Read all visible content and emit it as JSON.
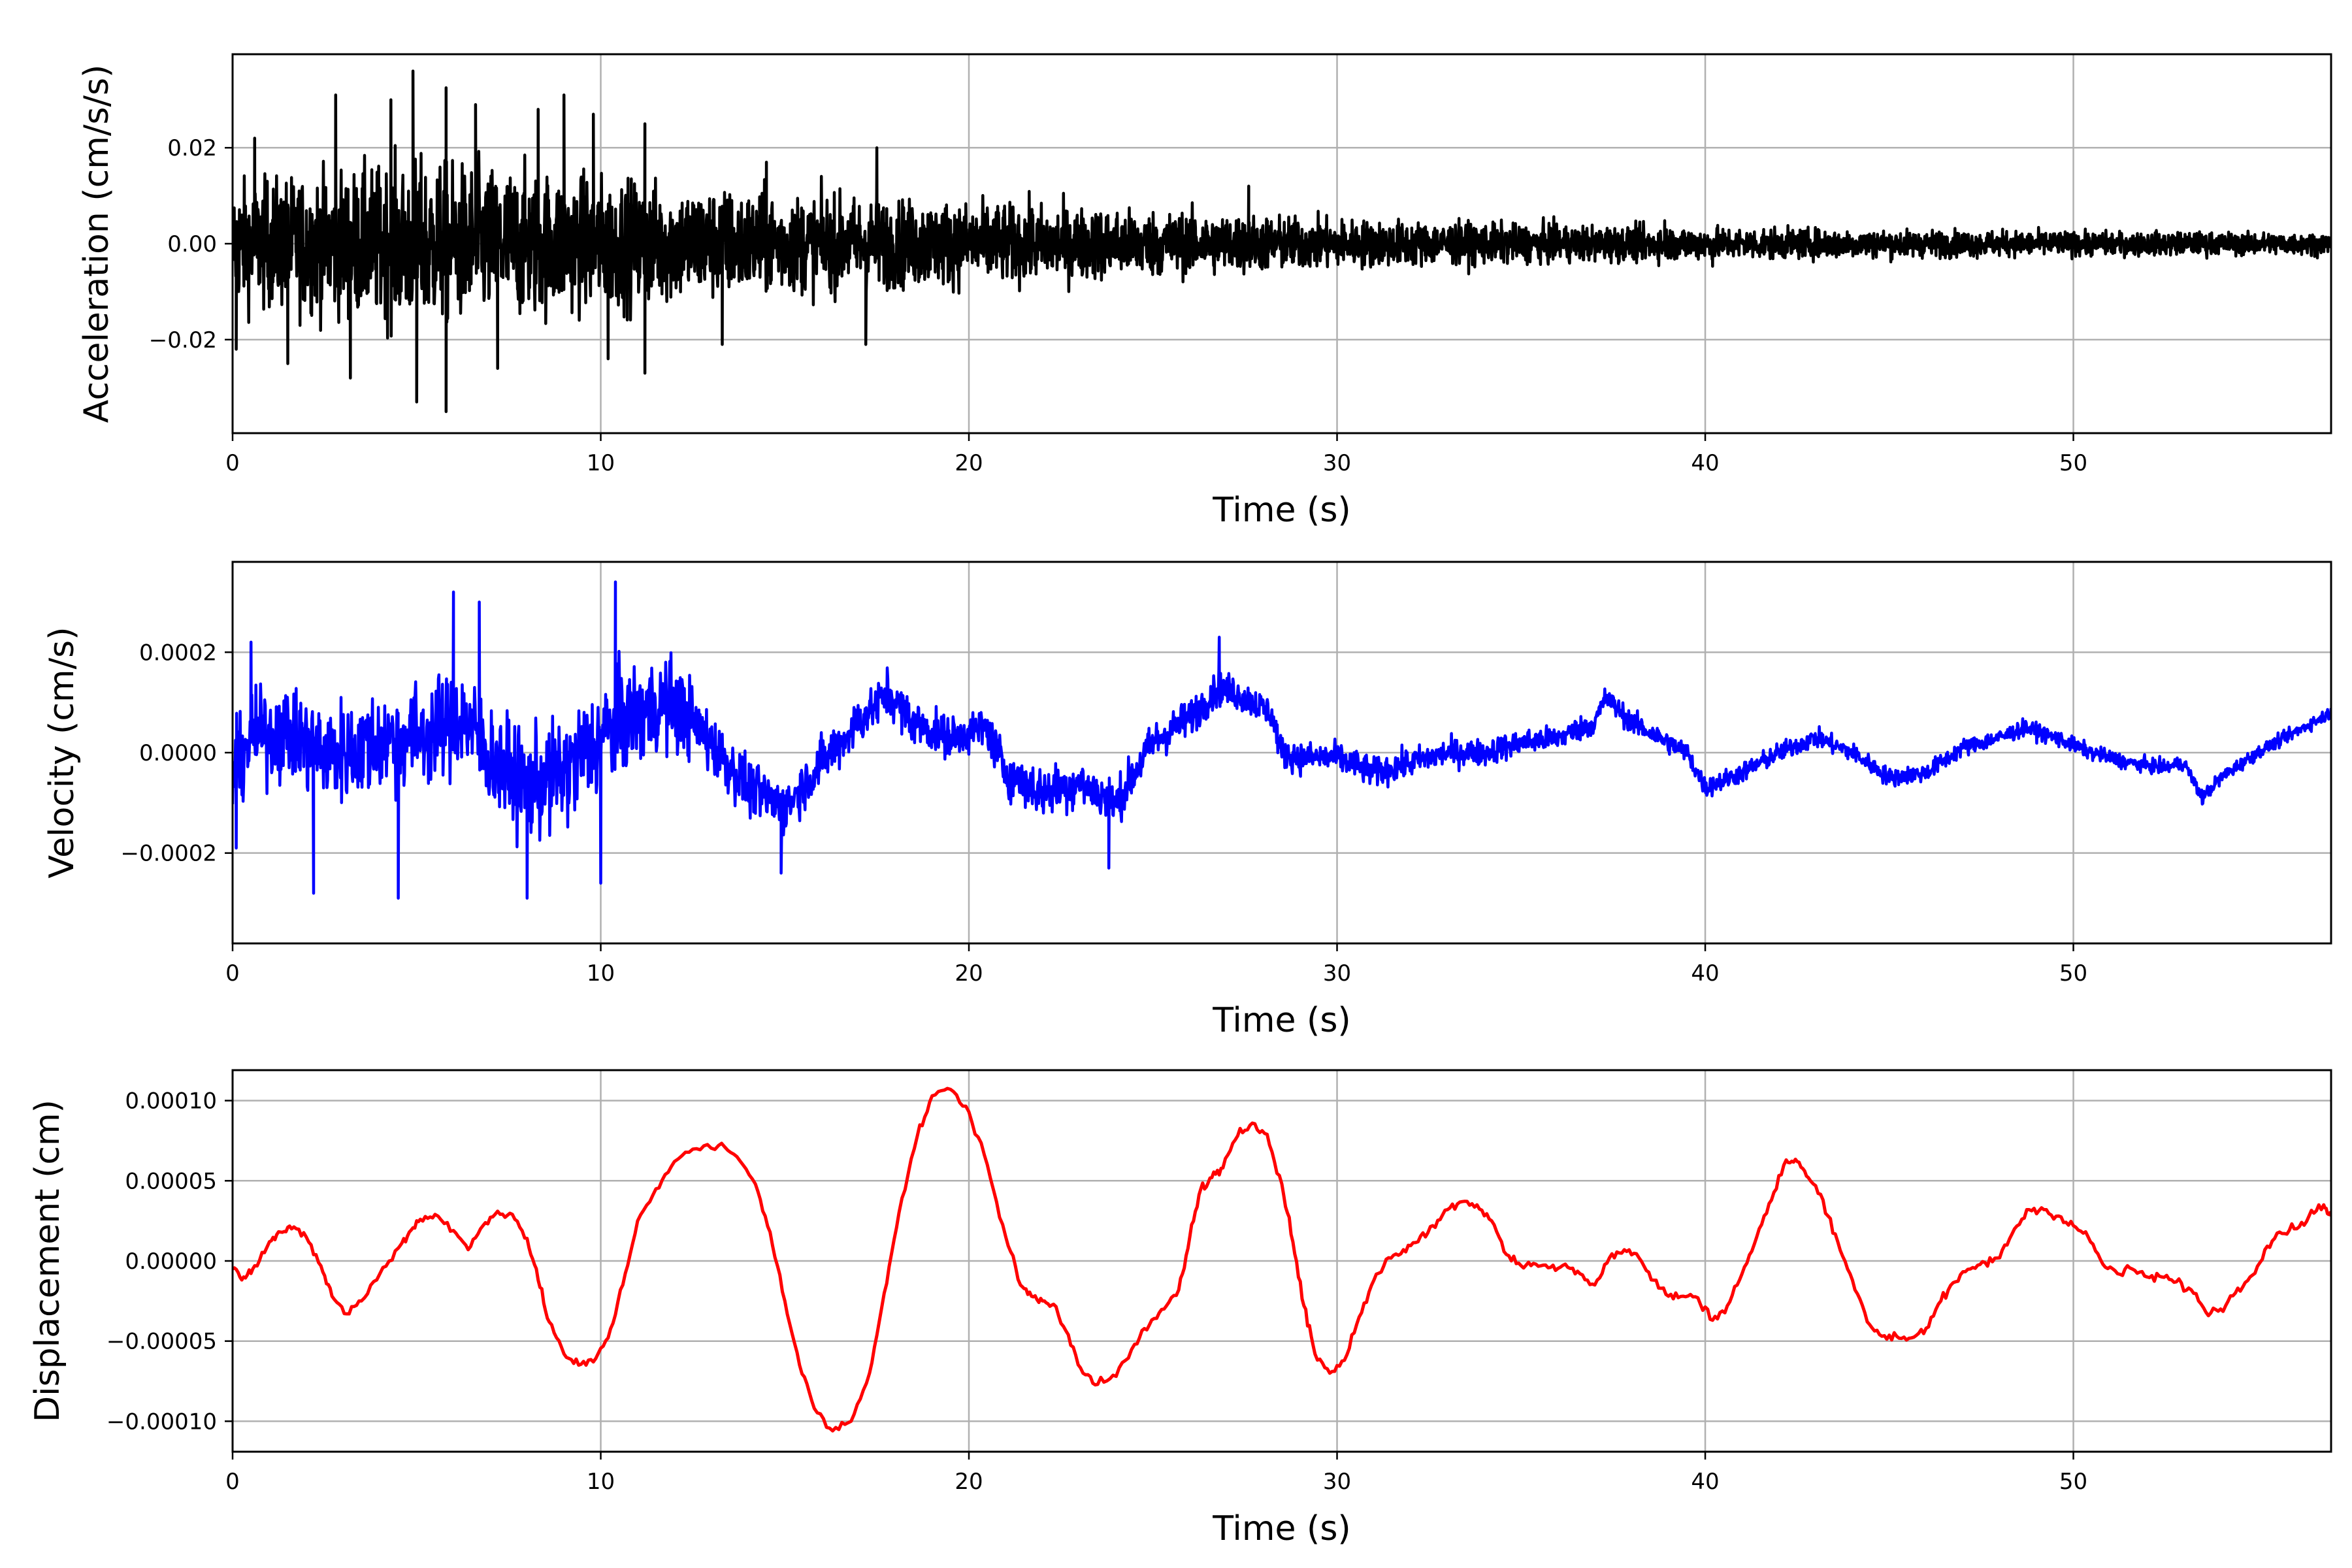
{
  "figure": {
    "background": "#ffffff",
    "grid_color": "#b0b0b0"
  },
  "chart_data": [
    {
      "type": "line",
      "title": "",
      "xlabel": "Time (s)",
      "ylabel": "Acceleration (cm/s/s)",
      "xlim": [
        0,
        57
      ],
      "ylim": [
        -0.0395,
        0.0395
      ],
      "xticks": [
        0,
        10,
        20,
        30,
        40,
        50
      ],
      "xtick_labels": [
        "0",
        "10",
        "20",
        "30",
        "40",
        "50"
      ],
      "yticks": [
        -0.02,
        0.0,
        0.02
      ],
      "ytick_labels": [
        "−0.02",
        "0.00",
        "0.02"
      ],
      "grid": true,
      "series": [
        {
          "color": "#000000",
          "style": "noise",
          "envelope": {
            "x": [
              0,
              3,
              5,
              7,
              10,
              15,
              20,
              25,
              30,
              35,
              40,
              45,
              50,
              57
            ],
            "y": [
              0.011,
              0.013,
              0.015,
              0.014,
              0.012,
              0.009,
              0.0075,
              0.006,
              0.0045,
              0.0035,
              0.003,
              0.0025,
              0.0022,
              0.002
            ]
          },
          "peaks": [
            {
              "x": 4.9,
              "y": 0.036
            },
            {
              "x": 5.8,
              "y": 0.0325
            },
            {
              "x": 5.8,
              "y": -0.035
            },
            {
              "x": 5.0,
              "y": -0.033
            },
            {
              "x": 1.5,
              "y": -0.025
            },
            {
              "x": 2.8,
              "y": 0.031
            },
            {
              "x": 3.2,
              "y": -0.028
            },
            {
              "x": 4.3,
              "y": 0.03
            },
            {
              "x": 6.6,
              "y": 0.029
            },
            {
              "x": 7.2,
              "y": -0.026
            },
            {
              "x": 8.3,
              "y": 0.028
            },
            {
              "x": 9.0,
              "y": 0.031
            },
            {
              "x": 9.8,
              "y": 0.027
            },
            {
              "x": 10.2,
              "y": -0.024
            },
            {
              "x": 11.2,
              "y": 0.025
            },
            {
              "x": 13.3,
              "y": -0.021
            },
            {
              "x": 17.5,
              "y": 0.02
            },
            {
              "x": 17.2,
              "y": -0.021
            },
            {
              "x": 14.5,
              "y": 0.017
            },
            {
              "x": 27.6,
              "y": 0.012
            },
            {
              "x": 38.9,
              "y": 0.0048
            },
            {
              "x": 40.2,
              "y": -0.0047
            },
            {
              "x": 0.6,
              "y": 0.022
            },
            {
              "x": 0.1,
              "y": -0.022
            },
            {
              "x": 11.2,
              "y": -0.027
            }
          ]
        }
      ]
    },
    {
      "type": "line",
      "title": "",
      "xlabel": "Time (s)",
      "ylabel": "Velocity (cm/s)",
      "xlim": [
        0,
        57
      ],
      "ylim": [
        -0.00038,
        0.00038
      ],
      "xticks": [
        0,
        10,
        20,
        30,
        40,
        50
      ],
      "xtick_labels": [
        "0",
        "10",
        "20",
        "30",
        "40",
        "50"
      ],
      "yticks": [
        -0.0002,
        0.0,
        0.0002
      ],
      "ytick_labels": [
        "−0.0002",
        "0.0000",
        "0.0002"
      ],
      "grid": true,
      "series": [
        {
          "color": "#0000ff",
          "style": "noisy-trend",
          "trend": {
            "x": [
              0,
              0.5,
              1.5,
              2.5,
              3.5,
              4.5,
              5.5,
              6.3,
              7,
              8,
              9,
              10,
              10.5,
              11,
              12,
              13,
              14,
              15,
              16,
              17,
              17.8,
              18.5,
              19.5,
              20.5,
              21,
              22,
              23,
              24,
              25,
              26,
              26.8,
              27.5,
              28.2,
              28.5,
              29,
              30,
              31,
              32,
              33,
              34,
              35,
              36,
              37,
              37.3,
              38,
              39,
              39.5,
              40,
              41,
              42,
              43,
              44,
              45,
              46,
              47,
              48,
              48.7,
              49.5,
              50.5,
              51.5,
              52.5,
              53,
              53.5,
              54,
              55,
              56,
              57
            ],
            "y": [
              -5e-05,
              3e-05,
              4e-05,
              0.0,
              1e-05,
              3e-05,
              4e-05,
              7e-05,
              -1e-05,
              -7e-05,
              -4e-05,
              3e-05,
              6e-05,
              8e-05,
              0.0001,
              2e-05,
              -7e-05,
              -0.00011,
              -2e-05,
              6e-05,
              0.00012,
              6e-05,
              3e-05,
              5e-05,
              -4e-05,
              -8e-05,
              -6e-05,
              -0.0001,
              2e-05,
              7e-05,
              0.00013,
              0.00011,
              8e-05,
              0.0,
              -1e-05,
              -1e-05,
              -4e-05,
              -2e-05,
              0.0,
              0.0,
              2e-05,
              3e-05,
              6e-05,
              0.00011,
              6e-05,
              2e-05,
              0.0,
              -7e-05,
              -4e-05,
              0.0,
              3e-05,
              0.0,
              -5e-05,
              -4e-05,
              1e-05,
              3e-05,
              5e-05,
              3e-05,
              0.0,
              -2e-05,
              -3e-05,
              -2e-05,
              -9e-05,
              -5e-05,
              0.0,
              4e-05,
              8e-05
            ]
          },
          "noise": {
            "x": [
              0,
              3,
              7,
              10,
              12,
              13,
              15,
              20,
              22,
              25,
              28,
              30,
              35,
              40,
              45,
              50,
              57
            ],
            "y": [
              8e-05,
              0.0001,
              0.0001,
              0.00011,
              9e-05,
              6e-05,
              5e-05,
              4e-05,
              5e-05,
              4e-05,
              3e-05,
              3e-05,
              2.5e-05,
              2e-05,
              1.8e-05,
              1.5e-05,
              1.2e-05
            ]
          },
          "peaks": [
            {
              "x": 10.4,
              "y": 0.00034
            },
            {
              "x": 6.0,
              "y": 0.00032
            },
            {
              "x": 6.7,
              "y": 0.0003
            },
            {
              "x": 8.0,
              "y": -0.00029
            },
            {
              "x": 4.5,
              "y": -0.00029
            },
            {
              "x": 2.2,
              "y": -0.00028
            },
            {
              "x": 10.0,
              "y": -0.00026
            },
            {
              "x": 26.8,
              "y": 0.00023
            },
            {
              "x": 23.8,
              "y": -0.00023
            },
            {
              "x": 14.9,
              "y": -0.00024
            },
            {
              "x": 0.5,
              "y": 0.00022
            },
            {
              "x": 0.1,
              "y": -0.00019
            }
          ]
        }
      ]
    },
    {
      "type": "line",
      "title": "",
      "xlabel": "Time (s)",
      "ylabel": "Displacement (cm)",
      "xlim": [
        0,
        57
      ],
      "ylim": [
        -0.000119,
        0.000119
      ],
      "xticks": [
        0,
        10,
        20,
        30,
        40,
        50
      ],
      "xtick_labels": [
        "0",
        "10",
        "20",
        "30",
        "40",
        "50"
      ],
      "yticks": [
        -0.0001,
        -5e-05,
        0.0,
        5e-05,
        0.0001
      ],
      "ytick_labels": [
        "−0.00010",
        "−0.00005",
        "0.00000",
        "0.00005",
        "0.00010"
      ],
      "grid": true,
      "series": [
        {
          "color": "#ff0000",
          "style": "smooth",
          "x": [
            0,
            0.3,
            0.6,
            1.0,
            1.3,
            1.6,
            2.0,
            2.4,
            2.7,
            3.1,
            3.5,
            4.0,
            4.5,
            4.8,
            5.1,
            5.5,
            6.0,
            6.4,
            6.8,
            7.2,
            7.6,
            8.0,
            8.3,
            8.6,
            9.0,
            9.4,
            9.8,
            10.2,
            10.6,
            11.0,
            11.5,
            12.0,
            12.6,
            13.2,
            13.7,
            14.2,
            14.6,
            15.0,
            15.4,
            15.8,
            16.3,
            16.8,
            17.3,
            17.7,
            18.1,
            18.6,
            19.0,
            19.5,
            20.0,
            20.5,
            21.0,
            21.4,
            21.7,
            22.0,
            22.3,
            22.7,
            23.1,
            23.5,
            24.0,
            24.5,
            24.9,
            25.3,
            25.7,
            26.0,
            26.3,
            26.6,
            26.9,
            27.3,
            27.7,
            28.1,
            28.5,
            28.8,
            29.1,
            29.4,
            29.8,
            30.2,
            30.6,
            31.0,
            31.4,
            31.8,
            32.2,
            32.6,
            33.0,
            33.4,
            33.8,
            34.2,
            34.6,
            35.0,
            35.4,
            35.8,
            36.2,
            36.6,
            37.0,
            37.4,
            37.8,
            38.2,
            38.6,
            39.0,
            39.4,
            39.8,
            40.2,
            40.6,
            41.0,
            41.4,
            41.8,
            42.2,
            42.5,
            42.8,
            43.2,
            43.6,
            44.0,
            44.4,
            44.8,
            45.2,
            45.6,
            46.0,
            46.4,
            46.8,
            47.2,
            47.6,
            48.0,
            48.4,
            48.8,
            49.2,
            49.6,
            50.0,
            50.4,
            50.8,
            51.2,
            51.6,
            52.0,
            52.4,
            52.8,
            53.2,
            53.6,
            54.0,
            54.4,
            54.8,
            55.2,
            55.6,
            56.0,
            56.4,
            56.8,
            57.0
          ],
          "y": [
            -5e-06,
            -1e-05,
            -3e-06,
            1.2e-05,
            1.8e-05,
            2e-05,
            1.5e-05,
            -3e-06,
            -2.2e-05,
            -3.3e-05,
            -2.5e-05,
            -8e-06,
            8e-06,
            1.8e-05,
            2.6e-05,
            2.9e-05,
            1.9e-05,
            7e-06,
            2.2e-05,
            3.1e-05,
            2.9e-05,
            1.4e-05,
            -1.2e-05,
            -3.8e-05,
            -5.8e-05,
            -6.5e-05,
            -6.3e-05,
            -4.8e-05,
            -1.5e-05,
            2.5e-05,
            4.5e-05,
            6.2e-05,
            7e-05,
            7.2e-05,
            6.5e-05,
            4.8e-05,
            1.8e-05,
            -2.5e-05,
            -6.5e-05,
            -9.2e-05,
            -0.000106,
            -0.0001,
            -7e-05,
            -2e-05,
            3e-05,
            7.8e-05,
            0.000103,
            0.000107,
            9.3e-05,
            6e-05,
            1.5e-05,
            -1.5e-05,
            -2.2e-05,
            -2.5e-05,
            -2.7e-05,
            -4.6e-05,
            -7e-05,
            -7.7e-05,
            -7.2e-05,
            -5.2e-05,
            -4e-05,
            -3e-05,
            -1.8e-05,
            1.5e-05,
            4.5e-05,
            5.2e-05,
            5.8e-05,
            7.8e-05,
            8.6e-05,
            7.9e-05,
            4.8e-05,
            1.2e-05,
            -2.8e-05,
            -5.8e-05,
            -7e-05,
            -6.2e-05,
            -3.5e-05,
            -1.2e-05,
            2e-06,
            7e-06,
            1.2e-05,
            2.2e-05,
            3.2e-05,
            3.7e-05,
            3.5e-05,
            2.5e-05,
            4e-06,
            -3e-06,
            -2e-06,
            -4e-06,
            -2e-06,
            -8e-06,
            -1.5e-05,
            2e-06,
            7e-06,
            2e-06,
            -1.2e-05,
            -2.2e-05,
            -2.2e-05,
            -2.3e-05,
            -3.7e-05,
            -2.8e-05,
            -8e-06,
            1.5e-05,
            3.8e-05,
            6.3e-05,
            6.2e-05,
            5.2e-05,
            3.8e-05,
            1.2e-05,
            -1.2e-05,
            -3.8e-05,
            -4.7e-05,
            -4.7e-05,
            -4.8e-05,
            -4.2e-05,
            -2.5e-05,
            -1.3e-05,
            -5e-06,
            -1e-06,
            2e-06,
            2e-05,
            3.2e-05,
            3.2e-05,
            2.8e-05,
            2.2e-05,
            1.5e-05,
            -2e-06,
            -8e-06,
            -5e-06,
            -1e-05,
            -1e-05,
            -1.3e-05,
            -1.8e-05,
            -3.2e-05,
            -3e-05,
            -2e-05,
            -1e-05,
            7e-06,
            1.8e-05,
            2e-05,
            2.8e-05,
            3.5e-05,
            2.8e-05
          ]
        }
      ]
    }
  ]
}
